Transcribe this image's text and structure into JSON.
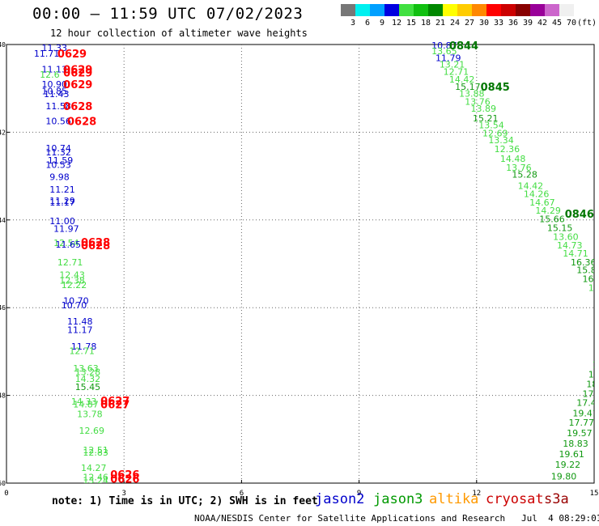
{
  "title": "00:00 – 11:59 UTC 07/02/2023",
  "subtitle": "12 hour collection of altimeter wave heights",
  "color_scale": {
    "unit": "(ft)",
    "swatches": [
      {
        "label": "3",
        "color": "#777777"
      },
      {
        "label": "6",
        "color": "#00f0f0"
      },
      {
        "label": "9",
        "color": "#00a0ff"
      },
      {
        "label": "12",
        "color": "#0000e0"
      },
      {
        "label": "15",
        "color": "#40e040"
      },
      {
        "label": "18",
        "color": "#10c010"
      },
      {
        "label": "21",
        "color": "#008800"
      },
      {
        "label": "24",
        "color": "#ffff00"
      },
      {
        "label": "27",
        "color": "#ffcc00"
      },
      {
        "label": "30",
        "color": "#ff8800"
      },
      {
        "label": "33",
        "color": "#ff0000"
      },
      {
        "label": "36",
        "color": "#cc0000"
      },
      {
        "label": "39",
        "color": "#880000"
      },
      {
        "label": "42",
        "color": "#990099"
      },
      {
        "label": "45",
        "color": "#cc66cc"
      },
      {
        "label": "70",
        "color": "#f0f0f0"
      }
    ]
  },
  "colors": {
    "blue": "#0000cc",
    "light_green": "#44dd44",
    "green": "#119911",
    "dark_green": "#007700",
    "red": "#ff0000"
  },
  "map": {
    "lon_ticks": [
      "0",
      "3",
      "6",
      "9",
      "12",
      "15"
    ],
    "lat_ticks": [
      "-40",
      "-42",
      "-44",
      "-46",
      "-48",
      "-50"
    ]
  },
  "chart_data": {
    "type": "scatter",
    "xlim": [
      0,
      15
    ],
    "ylim": [
      -50,
      -40
    ],
    "points": [
      {
        "lon": 0.9,
        "lat": -40.07,
        "v": "11.33",
        "c": "blue"
      },
      {
        "lon": 0.7,
        "lat": -40.2,
        "v": "11.71",
        "c": "blue"
      },
      {
        "lon": 0.9,
        "lat": -40.56,
        "v": "11.13",
        "c": "blue"
      },
      {
        "lon": 0.85,
        "lat": -40.68,
        "v": "12.6",
        "c": "light_green"
      },
      {
        "lon": 0.9,
        "lat": -40.9,
        "v": "10.90",
        "c": "blue"
      },
      {
        "lon": 0.9,
        "lat": -41.06,
        "v": "10.85",
        "c": "blue"
      },
      {
        "lon": 0.95,
        "lat": -41.13,
        "v": "11.43",
        "c": "blue"
      },
      {
        "lon": 1.0,
        "lat": -41.4,
        "v": "11.58",
        "c": "blue"
      },
      {
        "lon": 1.0,
        "lat": -41.74,
        "v": "10.56",
        "c": "blue"
      },
      {
        "lon": 1.0,
        "lat": -42.36,
        "v": "10.74",
        "c": "blue"
      },
      {
        "lon": 1.0,
        "lat": -42.45,
        "v": "11.32",
        "c": "blue"
      },
      {
        "lon": 1.05,
        "lat": -42.64,
        "v": "11.59",
        "c": "blue"
      },
      {
        "lon": 1.0,
        "lat": -42.74,
        "v": "10.53",
        "c": "blue"
      },
      {
        "lon": 1.1,
        "lat": -43.02,
        "v": "9.98",
        "c": "blue"
      },
      {
        "lon": 1.1,
        "lat": -43.3,
        "v": "11.21",
        "c": "blue"
      },
      {
        "lon": 1.1,
        "lat": -43.56,
        "v": "11.29",
        "c": "blue"
      },
      {
        "lon": 1.1,
        "lat": -43.6,
        "v": "11.17",
        "c": "blue"
      },
      {
        "lon": 1.1,
        "lat": -44.02,
        "v": "11.00",
        "c": "blue"
      },
      {
        "lon": 1.2,
        "lat": -44.2,
        "v": "11.97",
        "c": "blue"
      },
      {
        "lon": 1.2,
        "lat": -44.52,
        "v": "12.54",
        "c": "light_green"
      },
      {
        "lon": 1.25,
        "lat": -44.56,
        "v": "11.65",
        "c": "blue"
      },
      {
        "lon": 1.3,
        "lat": -44.96,
        "v": "12.71",
        "c": "light_green"
      },
      {
        "lon": 1.35,
        "lat": -45.25,
        "v": "12.43",
        "c": "light_green"
      },
      {
        "lon": 1.35,
        "lat": -45.38,
        "v": "12.38",
        "c": "light_green"
      },
      {
        "lon": 1.4,
        "lat": -45.48,
        "v": "12.22",
        "c": "light_green"
      },
      {
        "lon": 1.45,
        "lat": -45.84,
        "v": "10.70",
        "c": "blue"
      },
      {
        "lon": 1.4,
        "lat": -45.94,
        "v": "10.70",
        "c": "blue"
      },
      {
        "lon": 1.55,
        "lat": -46.31,
        "v": "11.48",
        "c": "blue"
      },
      {
        "lon": 1.55,
        "lat": -46.5,
        "v": "11.17",
        "c": "blue"
      },
      {
        "lon": 1.65,
        "lat": -46.88,
        "v": "11.78",
        "c": "blue"
      },
      {
        "lon": 1.6,
        "lat": -46.98,
        "v": "12.71",
        "c": "light_green"
      },
      {
        "lon": 1.7,
        "lat": -47.38,
        "v": "13.63",
        "c": "light_green"
      },
      {
        "lon": 1.75,
        "lat": -47.46,
        "v": "13.28",
        "c": "light_green"
      },
      {
        "lon": 1.75,
        "lat": -47.62,
        "v": "14.32",
        "c": "light_green"
      },
      {
        "lon": 1.75,
        "lat": -47.8,
        "v": "15.45",
        "c": "green"
      },
      {
        "lon": 1.65,
        "lat": -48.14,
        "v": "14.33",
        "c": "light_green"
      },
      {
        "lon": 1.7,
        "lat": -48.2,
        "v": "14.87",
        "c": "light_green"
      },
      {
        "lon": 1.8,
        "lat": -48.42,
        "v": "13.78",
        "c": "light_green"
      },
      {
        "lon": 1.85,
        "lat": -48.8,
        "v": "12.69",
        "c": "light_green"
      },
      {
        "lon": 1.95,
        "lat": -49.24,
        "v": "12.51",
        "c": "light_green"
      },
      {
        "lon": 1.95,
        "lat": -49.3,
        "v": "12.83",
        "c": "light_green"
      },
      {
        "lon": 1.9,
        "lat": -49.65,
        "v": "14.27",
        "c": "light_green"
      },
      {
        "lon": 1.95,
        "lat": -49.86,
        "v": "12.46",
        "c": "light_green"
      },
      {
        "lon": 1.95,
        "lat": -49.94,
        "v": "13.24",
        "c": "light_green"
      },
      {
        "lon": 10.85,
        "lat": -40.02,
        "v": "10.87",
        "c": "blue"
      },
      {
        "lon": 10.85,
        "lat": -40.15,
        "v": "13.65",
        "c": "light_green"
      },
      {
        "lon": 10.95,
        "lat": -40.3,
        "v": "11.79",
        "c": "blue"
      },
      {
        "lon": 11.05,
        "lat": -40.45,
        "v": "13.21",
        "c": "light_green"
      },
      {
        "lon": 11.15,
        "lat": -40.62,
        "v": "12.71",
        "c": "light_green"
      },
      {
        "lon": 11.3,
        "lat": -40.79,
        "v": "14.42",
        "c": "light_green"
      },
      {
        "lon": 11.45,
        "lat": -40.96,
        "v": "15.17",
        "c": "green"
      },
      {
        "lon": 11.55,
        "lat": -41.12,
        "v": "13.88",
        "c": "light_green"
      },
      {
        "lon": 11.7,
        "lat": -41.3,
        "v": "13.76",
        "c": "light_green"
      },
      {
        "lon": 11.85,
        "lat": -41.46,
        "v": "13.89",
        "c": "light_green"
      },
      {
        "lon": 11.9,
        "lat": -41.68,
        "v": "15.21",
        "c": "green"
      },
      {
        "lon": 12.05,
        "lat": -41.84,
        "v": "13.54",
        "c": "light_green"
      },
      {
        "lon": 12.15,
        "lat": -42.02,
        "v": "12.69",
        "c": "light_green"
      },
      {
        "lon": 12.3,
        "lat": -42.18,
        "v": "13.34",
        "c": "light_green"
      },
      {
        "lon": 12.45,
        "lat": -42.38,
        "v": "12.36",
        "c": "light_green"
      },
      {
        "lon": 12.6,
        "lat": -42.6,
        "v": "14.48",
        "c": "light_green"
      },
      {
        "lon": 12.75,
        "lat": -42.8,
        "v": "13.76",
        "c": "light_green"
      },
      {
        "lon": 12.9,
        "lat": -42.96,
        "v": "15.28",
        "c": "green"
      },
      {
        "lon": 13.05,
        "lat": -43.22,
        "v": "14.42",
        "c": "light_green"
      },
      {
        "lon": 13.2,
        "lat": -43.4,
        "v": "14.26",
        "c": "light_green"
      },
      {
        "lon": 13.35,
        "lat": -43.6,
        "v": "14.67",
        "c": "light_green"
      },
      {
        "lon": 13.5,
        "lat": -43.78,
        "v": "14.29",
        "c": "light_green"
      },
      {
        "lon": 13.6,
        "lat": -43.98,
        "v": "15.66",
        "c": "green"
      },
      {
        "lon": 13.8,
        "lat": -44.18,
        "v": "15.15",
        "c": "green"
      },
      {
        "lon": 13.95,
        "lat": -44.38,
        "v": "13.60",
        "c": "light_green"
      },
      {
        "lon": 14.05,
        "lat": -44.58,
        "v": "14.73",
        "c": "light_green"
      },
      {
        "lon": 14.2,
        "lat": -44.76,
        "v": "14.71",
        "c": "light_green"
      },
      {
        "lon": 14.4,
        "lat": -44.96,
        "v": "16.36",
        "c": "green"
      },
      {
        "lon": 14.55,
        "lat": -45.14,
        "v": "15.84",
        "c": "green"
      },
      {
        "lon": 14.7,
        "lat": -45.34,
        "v": "16.1",
        "c": "green"
      },
      {
        "lon": 14.85,
        "lat": -45.54,
        "v": "15",
        "c": "light_green"
      },
      {
        "lon": 14.95,
        "lat": -47.3,
        "v": "1",
        "c": "light_green"
      },
      {
        "lon": 14.85,
        "lat": -47.52,
        "v": "16",
        "c": "green"
      },
      {
        "lon": 14.8,
        "lat": -47.74,
        "v": "18.",
        "c": "green"
      },
      {
        "lon": 14.7,
        "lat": -47.96,
        "v": "17.8",
        "c": "green"
      },
      {
        "lon": 14.55,
        "lat": -48.16,
        "v": "17.41",
        "c": "green"
      },
      {
        "lon": 14.45,
        "lat": -48.4,
        "v": "19.41",
        "c": "green"
      },
      {
        "lon": 14.35,
        "lat": -48.62,
        "v": "17.77",
        "c": "green"
      },
      {
        "lon": 14.3,
        "lat": -48.86,
        "v": "19.57",
        "c": "green"
      },
      {
        "lon": 14.2,
        "lat": -49.1,
        "v": "18.83",
        "c": "green"
      },
      {
        "lon": 14.1,
        "lat": -49.34,
        "v": "19.61",
        "c": "green"
      },
      {
        "lon": 14.0,
        "lat": -49.58,
        "v": "19.22",
        "c": "green"
      },
      {
        "lon": 13.9,
        "lat": -49.84,
        "v": "19.80",
        "c": "green"
      }
    ],
    "time_labels": [
      {
        "lon": 1.3,
        "lat": -40.2,
        "v": "0629",
        "c": "red"
      },
      {
        "lon": 1.45,
        "lat": -40.56,
        "v": "0629",
        "c": "red"
      },
      {
        "lon": 1.45,
        "lat": -40.64,
        "v": "0629",
        "c": "red"
      },
      {
        "lon": 1.45,
        "lat": -40.9,
        "v": "0629",
        "c": "red"
      },
      {
        "lon": 1.45,
        "lat": -41.4,
        "v": "0628",
        "c": "red"
      },
      {
        "lon": 1.55,
        "lat": -41.74,
        "v": "0628",
        "c": "red"
      },
      {
        "lon": 1.9,
        "lat": -44.5,
        "v": "0628",
        "c": "red"
      },
      {
        "lon": 1.9,
        "lat": -44.58,
        "v": "0628",
        "c": "red"
      },
      {
        "lon": 2.4,
        "lat": -48.12,
        "v": "0627",
        "c": "red"
      },
      {
        "lon": 2.4,
        "lat": -48.2,
        "v": "0627",
        "c": "red"
      },
      {
        "lon": 2.65,
        "lat": -49.8,
        "v": "0626",
        "c": "red"
      },
      {
        "lon": 2.65,
        "lat": -49.9,
        "v": "0626",
        "c": "red"
      },
      {
        "lon": 11.3,
        "lat": -40.02,
        "v": "0844",
        "c": "dark_green"
      },
      {
        "lon": 12.1,
        "lat": -40.96,
        "v": "0845",
        "c": "dark_green"
      },
      {
        "lon": 14.25,
        "lat": -43.86,
        "v": "0846",
        "c": "dark_green"
      }
    ]
  },
  "note": "note: 1) Time is in UTC; 2) SWH is in feet",
  "satellites": [
    {
      "name": "jason2",
      "color": "#0000cc"
    },
    {
      "name": "jason3",
      "color": "#009900"
    },
    {
      "name": "altika",
      "color": "#ff9900"
    },
    {
      "name": "cryosat",
      "color": "#cc0000"
    },
    {
      "name": "s3a",
      "color": "#990000"
    }
  ],
  "footer": "NOAA/NESDIS Center for Satellite Applications and Research   Jul  4 08:29:01 UTC 2023"
}
